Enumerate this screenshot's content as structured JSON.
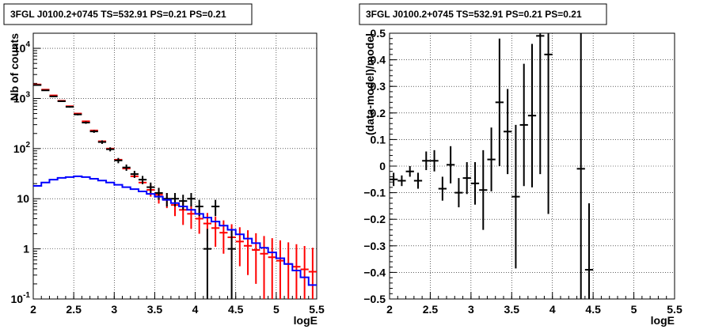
{
  "chart_data": [
    {
      "type": "scatter",
      "title": "3FGL J0100.2+0745 TS=532.91 PS=0.21 PS=0.21",
      "xlabel": "logE",
      "ylabel": "Nb of counts",
      "xlim": [
        2,
        5.5
      ],
      "ylim": [
        0.1,
        20000
      ],
      "yscale": "log",
      "grid": true,
      "x_ticks": [
        "2",
        "2.5",
        "3",
        "3.5",
        "4",
        "4.5",
        "5",
        "5.5"
      ],
      "y_ticks": [
        "10^-1",
        "1",
        "10",
        "10^2",
        "10^3",
        "10^4"
      ],
      "series": [
        {
          "color": "#ff0000",
          "style": "errorbar",
          "x": [
            2.05,
            2.15,
            2.25,
            2.35,
            2.45,
            2.55,
            2.65,
            2.75,
            2.85,
            2.95,
            3.05,
            3.15,
            3.25,
            3.35,
            3.45,
            3.55,
            3.65,
            3.75,
            3.85,
            3.95,
            4.05,
            4.15,
            4.25,
            4.35,
            4.45,
            4.55,
            4.65,
            4.75,
            4.85,
            4.95,
            5.05,
            5.15,
            5.25,
            5.35,
            5.45
          ],
          "y": [
            1900,
            1500,
            1150,
            900,
            700,
            500,
            350,
            230,
            140,
            100,
            60,
            40,
            28,
            21,
            15,
            12,
            9.5,
            7.5,
            6,
            5,
            4,
            3.2,
            2.6,
            2.1,
            1.7,
            1.4,
            1.15,
            0.95,
            0.8,
            0.68,
            0.58,
            0.5,
            0.44,
            0.39,
            0.35
          ],
          "yerr_low": [
            0,
            0,
            0,
            0,
            0,
            0,
            0,
            0,
            0,
            0,
            0,
            0,
            0,
            0,
            4,
            4,
            3,
            3,
            3,
            2.5,
            2,
            1.8,
            1.5,
            1.3,
            1.1,
            0.95,
            0.85,
            0.75,
            0.7,
            0.65,
            0.55,
            0.5,
            0.44,
            0.39,
            0.35
          ],
          "yerr_high": [
            0,
            0,
            0,
            0,
            0,
            0,
            0,
            0,
            0,
            0,
            0,
            0,
            0,
            0,
            4,
            4,
            3.5,
            3,
            3,
            2.5,
            2.5,
            2,
            1.8,
            1.6,
            1.4,
            1.3,
            1.2,
            1.1,
            1.0,
            0.95,
            0.9,
            0.85,
            0.8,
            0.75,
            0.7
          ]
        },
        {
          "color": "#000000",
          "style": "errorbar",
          "x": [
            2.05,
            2.15,
            2.25,
            2.35,
            2.45,
            2.55,
            2.65,
            2.75,
            2.85,
            2.95,
            3.05,
            3.15,
            3.25,
            3.35,
            3.45,
            3.55,
            3.65,
            3.75,
            3.85,
            3.95,
            4.05,
            4.15,
            4.25,
            4.35,
            4.45,
            4.55,
            4.65,
            4.75,
            4.85,
            4.95,
            5.05,
            5.15,
            5.25,
            5.35,
            5.45
          ],
          "y": [
            1850,
            1450,
            1100,
            880,
            680,
            480,
            330,
            220,
            135,
            97,
            58,
            42,
            31,
            24,
            17,
            13,
            10,
            10,
            9,
            10,
            7,
            1,
            7,
            0,
            1,
            0,
            0,
            0,
            0,
            0,
            0,
            0,
            0,
            0,
            0
          ],
          "yerr_low": [
            40,
            35,
            30,
            28,
            25,
            20,
            18,
            14,
            11,
            9,
            7,
            6,
            5,
            4.5,
            4,
            3.5,
            3,
            3,
            3,
            3,
            2.5,
            0.9,
            2.5,
            0,
            0.9,
            0,
            0,
            0,
            0,
            0,
            0,
            0,
            0,
            0,
            0
          ],
          "yerr_high": [
            40,
            35,
            30,
            28,
            25,
            20,
            18,
            14,
            11,
            9,
            7,
            6,
            5,
            4.5,
            4,
            3.5,
            3,
            3,
            3,
            3,
            2.5,
            1.5,
            2.5,
            0,
            1.5,
            0,
            0,
            0,
            0,
            0,
            0,
            0,
            0,
            0,
            0
          ]
        },
        {
          "color": "#0000ff",
          "style": "step",
          "x": [
            2.05,
            2.15,
            2.25,
            2.35,
            2.45,
            2.55,
            2.65,
            2.75,
            2.85,
            2.95,
            3.05,
            3.15,
            3.25,
            3.35,
            3.45,
            3.55,
            3.65,
            3.75,
            3.85,
            3.95,
            4.05,
            4.15,
            4.25,
            4.35,
            4.45,
            4.55,
            4.65,
            4.75,
            4.85,
            4.95,
            5.05,
            5.15,
            5.25,
            5.35,
            5.45
          ],
          "y": [
            18,
            21,
            24,
            26,
            27,
            28,
            27,
            25,
            23,
            21,
            19,
            17,
            15.5,
            14,
            12.5,
            11,
            9.5,
            8.2,
            7,
            6,
            5,
            4.2,
            3.5,
            2.9,
            2.4,
            1.95,
            1.6,
            1.3,
            1.05,
            0.85,
            0.65,
            0.5,
            0.37,
            0.27,
            0.19
          ]
        }
      ]
    },
    {
      "type": "scatter",
      "title": "3FGL J0100.2+0745 TS=532.91 PS=0.21 PS=0.21",
      "xlabel": "logE",
      "ylabel": "(data-model)/model",
      "xlim": [
        2,
        5.5
      ],
      "ylim": [
        -0.5,
        0.5
      ],
      "grid": true,
      "x_ticks": [
        "2",
        "2.5",
        "3",
        "3.5",
        "4",
        "4.5",
        "5",
        "5.5"
      ],
      "y_ticks": [
        "-0.5",
        "-0.4",
        "-0.3",
        "-0.2",
        "-0.1",
        "0",
        "0.1",
        "0.2",
        "0.3",
        "0.4",
        "0.5"
      ],
      "series": [
        {
          "color": "#000000",
          "style": "errorbar",
          "x": [
            2.05,
            2.15,
            2.25,
            2.35,
            2.45,
            2.55,
            2.65,
            2.75,
            2.85,
            2.95,
            3.05,
            3.15,
            3.25,
            3.35,
            3.45,
            3.55,
            3.65,
            3.75,
            3.85,
            3.95,
            4.35,
            4.45
          ],
          "y": [
            -0.05,
            -0.055,
            -0.02,
            -0.055,
            0.02,
            0.02,
            -0.085,
            0.005,
            -0.1,
            -0.045,
            -0.065,
            -0.09,
            0.025,
            0.24,
            0.13,
            -0.115,
            0.155,
            0.19,
            0.49,
            0.42,
            -0.01,
            -0.39
          ],
          "yerr": [
            0.025,
            0.02,
            0.02,
            0.03,
            0.035,
            0.04,
            0.045,
            0.07,
            0.055,
            0.06,
            0.08,
            0.15,
            0.12,
            0.24,
            0.16,
            0.27,
            0.23,
            0.27,
            0.52,
            0.6,
            0.6,
            0.25
          ]
        }
      ]
    }
  ]
}
